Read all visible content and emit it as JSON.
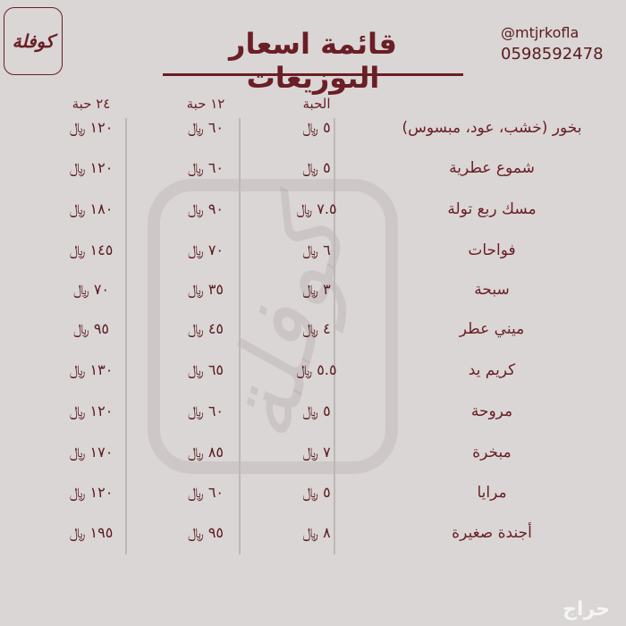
{
  "header": {
    "logo_text": "كوفلة",
    "title": "قائمة اسعار التوزيعات",
    "handle": "@mtjrkofla",
    "phone": "0598592478"
  },
  "table": {
    "columns": [
      "٢٤ حبة",
      "١٢ حبة",
      "الحبة"
    ],
    "rows": [
      {
        "name": "بخور (خشب، عود، مبسوس)",
        "unit": "٥ ﷼",
        "dozen": "٦٠ ﷼",
        "double": "١٢٠ ﷼"
      },
      {
        "name": "شموع عطرية",
        "unit": "٥ ﷼",
        "dozen": "٦٠ ﷼",
        "double": "١٢٠ ﷼"
      },
      {
        "name": "مسك ربع تولة",
        "unit": "٧.٥ ﷼",
        "dozen": "٩٠ ﷼",
        "double": "١٨٠ ﷼"
      },
      {
        "name": "فواحات",
        "unit": "٦ ﷼",
        "dozen": "٧٠ ﷼",
        "double": "١٤٥ ﷼"
      },
      {
        "name": "سبحة",
        "unit": "٣ ﷼",
        "dozen": "٣٥ ﷼",
        "double": "٧٠ ﷼"
      },
      {
        "name": "ميني عطر",
        "unit": "٤ ﷼",
        "dozen": "٤٥ ﷼",
        "double": "٩٥ ﷼"
      },
      {
        "name": "كريم يد",
        "unit": "٥.٥ ﷼",
        "dozen": "٦٥ ﷼",
        "double": "١٣٠ ﷼"
      },
      {
        "name": "مروحة",
        "unit": "٥ ﷼",
        "dozen": "٦٠ ﷼",
        "double": "١٢٠ ﷼"
      },
      {
        "name": "مبخرة",
        "unit": "٧ ﷼",
        "dozen": "٨٥ ﷼",
        "double": "١٧٠ ﷼"
      },
      {
        "name": "مرايا",
        "unit": "٥ ﷼",
        "dozen": "٦٠ ﷼",
        "double": "١٢٠ ﷼"
      },
      {
        "name": "أجندة صغيرة",
        "unit": "٨ ﷼",
        "dozen": "٩٥ ﷼",
        "double": "١٩٥ ﷼"
      }
    ]
  },
  "watermark": {
    "brand": "كوفلة",
    "site": "حراج"
  },
  "colors": {
    "background": "#dad6d5",
    "accent": "#6a1e26"
  }
}
